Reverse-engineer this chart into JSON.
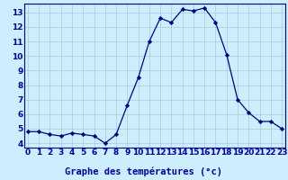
{
  "hours": [
    0,
    1,
    2,
    3,
    4,
    5,
    6,
    7,
    8,
    9,
    10,
    11,
    12,
    13,
    14,
    15,
    16,
    17,
    18,
    19,
    20,
    21,
    22,
    23
  ],
  "temperatures": [
    4.8,
    4.8,
    4.6,
    4.5,
    4.7,
    4.6,
    4.5,
    4.0,
    4.6,
    6.6,
    8.5,
    11.0,
    12.6,
    12.3,
    13.2,
    13.1,
    13.3,
    12.3,
    10.1,
    7.0,
    6.1,
    5.5,
    5.5,
    5.0
  ],
  "ylim": [
    3.7,
    13.6
  ],
  "yticks": [
    4,
    5,
    6,
    7,
    8,
    9,
    10,
    11,
    12,
    13
  ],
  "xlabel": "Graphe des températures (°c)",
  "line_color": "#00008b",
  "marker_color": "#00008b",
  "bg_color": "#cceeff",
  "grid_color": "#aacccc",
  "tick_label_color": "#0000aa",
  "spine_color": "#0000aa",
  "tick_fontsize": 6.5,
  "xlabel_fontsize": 7.5
}
